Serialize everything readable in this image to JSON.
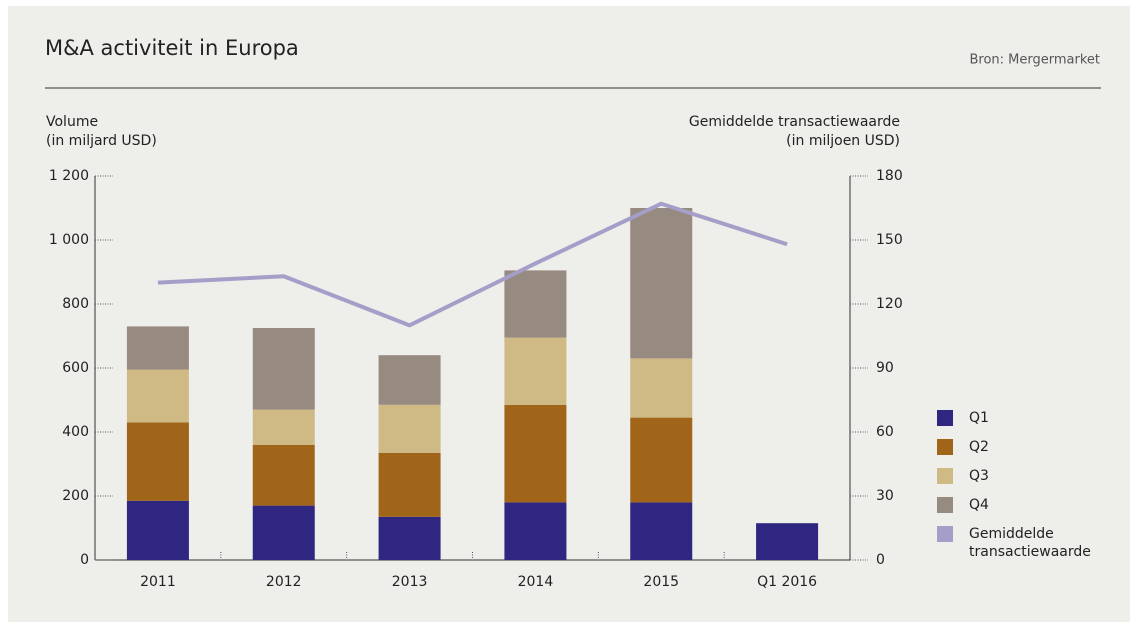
{
  "chart_data": {
    "type": "bar",
    "title": "M&A activiteit in Europa",
    "source": "Bron: Mergermarket",
    "ylabel": [
      "Volume",
      "(in miljard USD)"
    ],
    "y2label": [
      "Gemiddelde transactiewaarde",
      "(in miljoen USD)"
    ],
    "categories": [
      "2011",
      "2012",
      "2013",
      "2014",
      "2015",
      "Q1 2016"
    ],
    "stacked": true,
    "series": [
      {
        "name": "Q1",
        "color": "#2e2680",
        "values": [
          185,
          170,
          135,
          180,
          180,
          115
        ]
      },
      {
        "name": "Q2",
        "color": "#a06518",
        "values": [
          245,
          190,
          200,
          305,
          265,
          null
        ]
      },
      {
        "name": "Q3",
        "color": "#cfb985",
        "values": [
          165,
          110,
          150,
          210,
          185,
          null
        ]
      },
      {
        "name": "Q4",
        "color": "#978a80",
        "values": [
          135,
          255,
          155,
          210,
          470,
          null
        ]
      },
      {
        "name": "Gemiddelde transactiewaarde",
        "type": "line",
        "axis": "y2",
        "color": "#a59ec8",
        "values": [
          130,
          133,
          110,
          139,
          167,
          148
        ]
      }
    ],
    "ylim": [
      0,
      1200
    ],
    "yticks": [
      0,
      200,
      400,
      600,
      800,
      {
        "value": 1000,
        "label": "1 000"
      },
      {
        "value": 1200,
        "label": "1 200"
      }
    ],
    "y2lim": [
      0,
      180
    ],
    "y2ticks": [
      0,
      30,
      60,
      90,
      120,
      150,
      180
    ],
    "legend": "right"
  }
}
